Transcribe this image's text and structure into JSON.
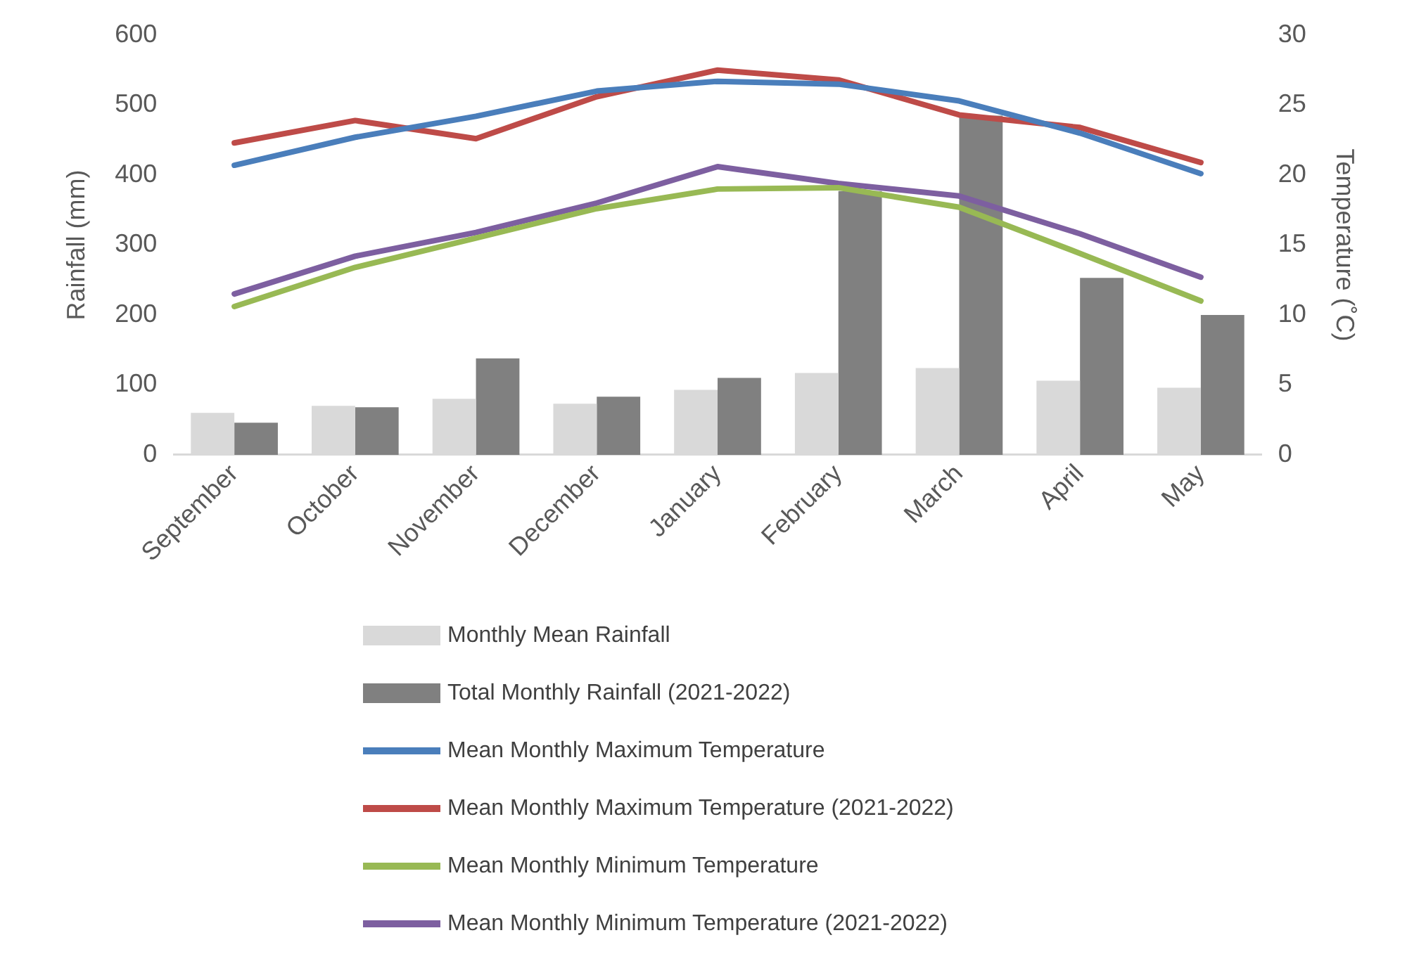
{
  "chart_data": {
    "type": "bar",
    "ylabel": "Rainfall (mm)",
    "y2label": "Temperature (˚C)",
    "categories": [
      "September",
      "October",
      "November",
      "December",
      "January",
      "February",
      "March",
      "April",
      "May"
    ],
    "ylim": [
      0,
      600
    ],
    "yticks": [
      0,
      100,
      200,
      300,
      400,
      500,
      600
    ],
    "y2lim": [
      0,
      30
    ],
    "y2ticks": [
      0,
      5,
      10,
      15,
      20,
      25,
      30
    ],
    "grid": false,
    "legend": "bottom",
    "marker": "none",
    "series": [
      {
        "name": "Monthly Mean Rainfall",
        "color": "#d9d9d9",
        "values": [
          60,
          70,
          80,
          73,
          93,
          117,
          124,
          106,
          96
        ]
      },
      {
        "name": "Total Monthly Rainfall (2021-2022)",
        "color": "#808080",
        "values": [
          46,
          68,
          138,
          83,
          110,
          377,
          485,
          253,
          200
        ]
      },
      {
        "name": "Mean Monthly Maximum Temperature",
        "type": "line",
        "axis": "y2",
        "color": "#4a7ebb",
        "values": [
          20.7,
          22.7,
          24.2,
          26,
          26.7,
          26.5,
          25.3,
          23,
          20.1
        ]
      },
      {
        "name": "Mean Monthly Maximum Temperature (2021-2022)",
        "type": "line",
        "axis": "y2",
        "color": "#be4b48",
        "values": [
          22.3,
          23.9,
          22.6,
          25.6,
          27.5,
          26.8,
          24.3,
          23.4,
          20.9
        ]
      },
      {
        "name": "Mean Monthly Minimum Temperature",
        "type": "line",
        "axis": "y2",
        "color": "#98b954",
        "values": [
          10.6,
          13.4,
          15.5,
          17.6,
          19,
          19.1,
          17.7,
          14.4,
          11
        ]
      },
      {
        "name": "Mean Monthly Minimum Temperature (2021-2022)",
        "type": "line",
        "axis": "y2",
        "color": "#7d5fa0",
        "values": [
          11.5,
          14.2,
          15.9,
          18,
          20.6,
          19.4,
          18.5,
          15.8,
          12.7
        ]
      }
    ]
  }
}
